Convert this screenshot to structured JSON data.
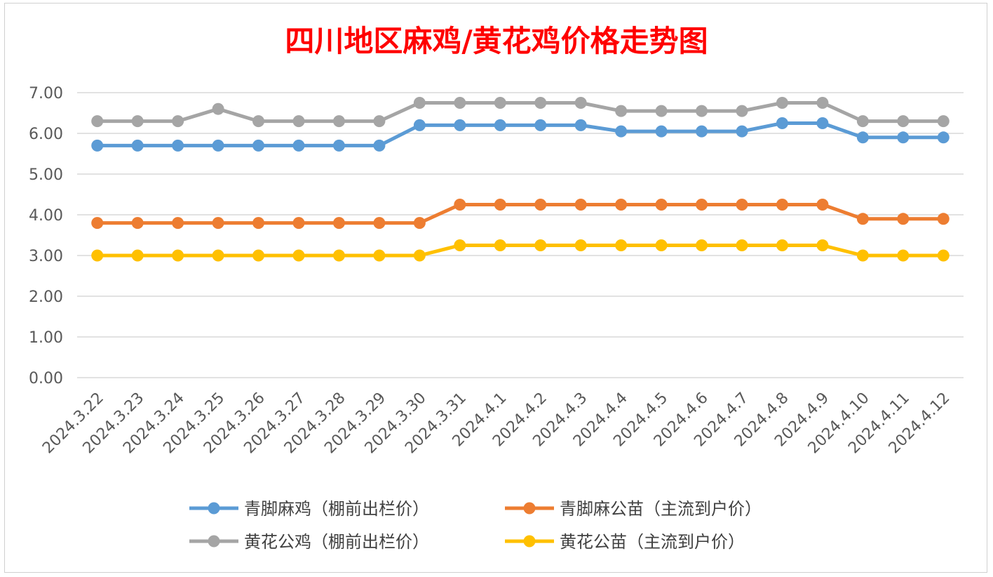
{
  "chart_data": {
    "type": "line",
    "title": "四川地区麻鸡/黄花鸡价格走势图",
    "xlabel": "",
    "ylabel": "",
    "ylim": [
      0,
      7
    ],
    "yticks": [
      "0.00",
      "1.00",
      "2.00",
      "3.00",
      "4.00",
      "5.00",
      "6.00",
      "7.00"
    ],
    "grid": true,
    "legend_position": "bottom",
    "categories": [
      "2024.3.22",
      "2024.3.23",
      "2024.3.24",
      "2024.3.25",
      "2024.3.26",
      "2024.3.27",
      "2024.3.28",
      "2024.3.29",
      "2024.3.30",
      "2024.3.31",
      "2024.4.1",
      "2024.4.2",
      "2024.4.3",
      "2024.4.4",
      "2024.4.5",
      "2024.4.6",
      "2024.4.7",
      "2024.4.8",
      "2024.4.9",
      "2024.4.10",
      "2024.4.11",
      "2024.4.12"
    ],
    "series": [
      {
        "name": "青脚麻鸡（棚前出栏价）",
        "color": "#5b9bd5",
        "values": [
          5.7,
          5.7,
          5.7,
          5.7,
          5.7,
          5.7,
          5.7,
          5.7,
          6.2,
          6.2,
          6.2,
          6.2,
          6.2,
          6.05,
          6.05,
          6.05,
          6.05,
          6.25,
          6.25,
          5.9,
          5.9,
          5.9
        ]
      },
      {
        "name": "青脚麻公苗（主流到户价）",
        "color": "#ed7d31",
        "values": [
          3.8,
          3.8,
          3.8,
          3.8,
          3.8,
          3.8,
          3.8,
          3.8,
          3.8,
          4.25,
          4.25,
          4.25,
          4.25,
          4.25,
          4.25,
          4.25,
          4.25,
          4.25,
          4.25,
          3.9,
          3.9,
          3.9
        ]
      },
      {
        "name": "黄花公鸡（棚前出栏价）",
        "color": "#a5a5a5",
        "values": [
          6.3,
          6.3,
          6.3,
          6.6,
          6.3,
          6.3,
          6.3,
          6.3,
          6.75,
          6.75,
          6.75,
          6.75,
          6.75,
          6.55,
          6.55,
          6.55,
          6.55,
          6.75,
          6.75,
          6.3,
          6.3,
          6.3
        ]
      },
      {
        "name": "黄花公苗（主流到户价）",
        "color": "#ffc000",
        "values": [
          3.0,
          3.0,
          3.0,
          3.0,
          3.0,
          3.0,
          3.0,
          3.0,
          3.0,
          3.25,
          3.25,
          3.25,
          3.25,
          3.25,
          3.25,
          3.25,
          3.25,
          3.25,
          3.25,
          3.0,
          3.0,
          3.0
        ]
      }
    ],
    "gridline_color": "#d9d9d9",
    "title_color": "#ff0000"
  }
}
